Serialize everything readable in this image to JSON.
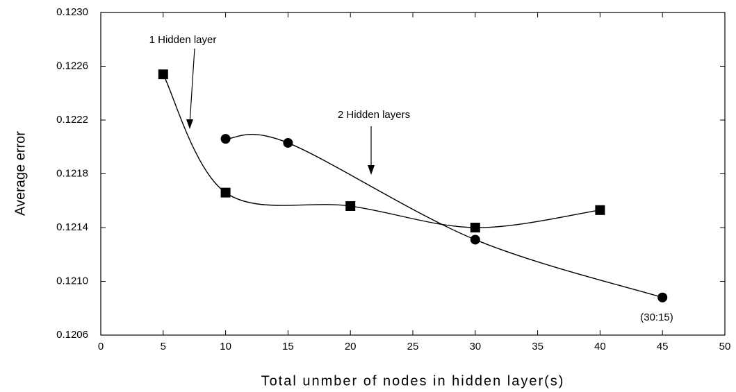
{
  "chart_data": {
    "type": "line",
    "x_label": "Total unmber of nodes in hidden layer(s)",
    "y_label": "Average error",
    "xlim": [
      0,
      50
    ],
    "xticks": [
      0,
      5,
      10,
      15,
      20,
      25,
      30,
      35,
      40,
      45,
      50
    ],
    "ylim": [
      0.1206,
      0.123
    ],
    "yticks": [
      0.1206,
      {
        "value": 0.121,
        "label": "0.1210"
      },
      0.1214,
      0.1218,
      0.1222,
      0.1226,
      {
        "value": 0.123,
        "label": "0.1230"
      }
    ],
    "series": [
      {
        "marker": "square",
        "color": "#000000",
        "x": [
          5,
          10,
          20,
          30,
          40
        ],
        "values": [
          0.12254,
          0.12166,
          0.12156,
          0.1214,
          0.12153
        ]
      },
      {
        "marker": "circle",
        "color": "#000000",
        "x": [
          10,
          15,
          30,
          45
        ],
        "values": [
          0.12206,
          0.12203,
          0.12131,
          0.12088
        ]
      }
    ],
    "annotations": [
      "1 Hidden layer",
      "2 Hidden layers",
      "(30:15)"
    ]
  }
}
